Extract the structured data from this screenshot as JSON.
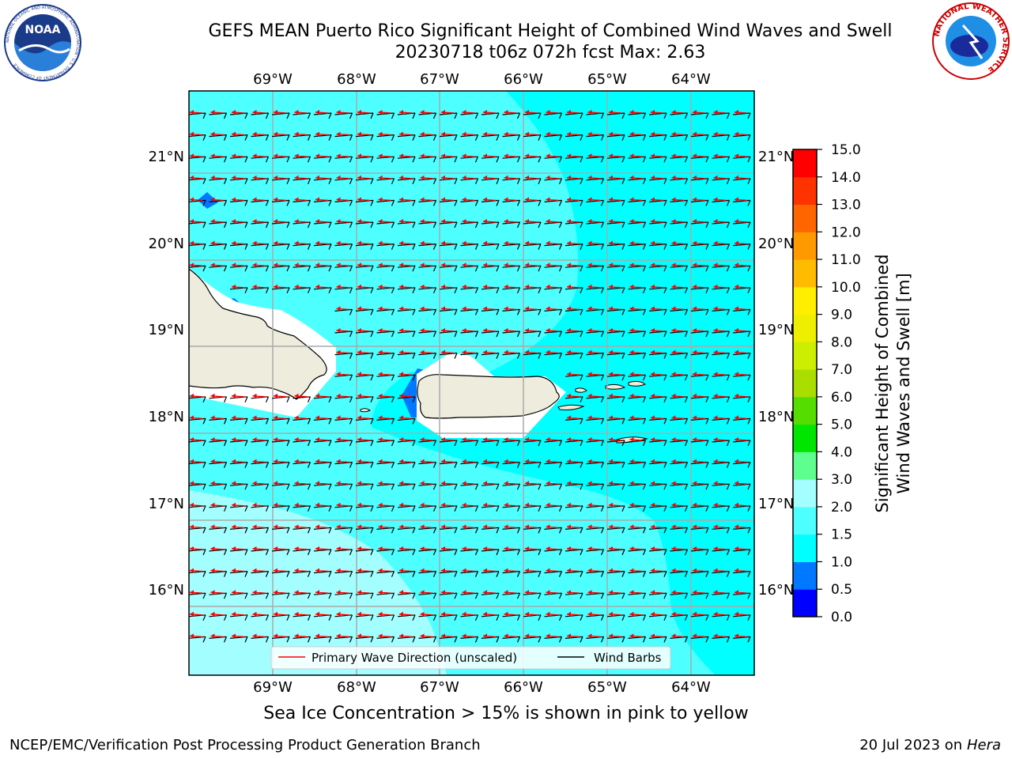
{
  "header": {
    "title_line1": "GEFS MEAN Puerto Rico Significant Height of Combined Wind Waves and Swell",
    "title_line2": "20230718 t06z 072h fcst   Max: 2.63"
  },
  "logos": {
    "left": "NOAA",
    "left_ring_text": "NATIONAL OCEANIC AND ATMOSPHERIC ADMINISTRATION · U.S. DEPARTMENT OF COMMERCE",
    "right_ring_text": "NATIONAL WEATHER SERVICE"
  },
  "map": {
    "lon_labels": [
      "69°W",
      "68°W",
      "67°W",
      "66°W",
      "65°W",
      "64°W"
    ],
    "lat_labels": [
      "21°N",
      "20°N",
      "19°N",
      "18°N",
      "17°N",
      "16°N"
    ],
    "legend": {
      "wave_direction": "Primary Wave Direction (unscaled)",
      "wind_barbs": "Wind Barbs",
      "wave_color": "#ff0000",
      "barb_color": "#000000"
    },
    "land_color": "#eeecdc",
    "ocean_background": "#00ffff"
  },
  "colorbar": {
    "label_line1": "Significant Height of Combined",
    "label_line2": "Wind Waves and Swell [m]",
    "ticks": [
      "0.0",
      "0.5",
      "1.0",
      "1.5",
      "2.0",
      "3.0",
      "4.0",
      "5.0",
      "6.0",
      "7.0",
      "8.0",
      "9.0",
      "10.0",
      "11.0",
      "12.0",
      "13.0",
      "14.0",
      "15.0"
    ],
    "colors": [
      "#0000ff",
      "#0078ff",
      "#00ffff",
      "#4dffff",
      "#a3ffff",
      "#5fff8f",
      "#00e600",
      "#55dd00",
      "#aadd00",
      "#ccee00",
      "#eeee00",
      "#ffee00",
      "#ffbb00",
      "#ff9900",
      "#ff6600",
      "#ff3300",
      "#ff0000"
    ]
  },
  "footer": {
    "sea_ice_note": "Sea Ice Concentration > 15% is shown in pink to yellow",
    "left": "NCEP/EMC/Verification Post Processing Product Generation Branch",
    "date": "20 Jul 2023 on ",
    "machine": "Hera"
  }
}
